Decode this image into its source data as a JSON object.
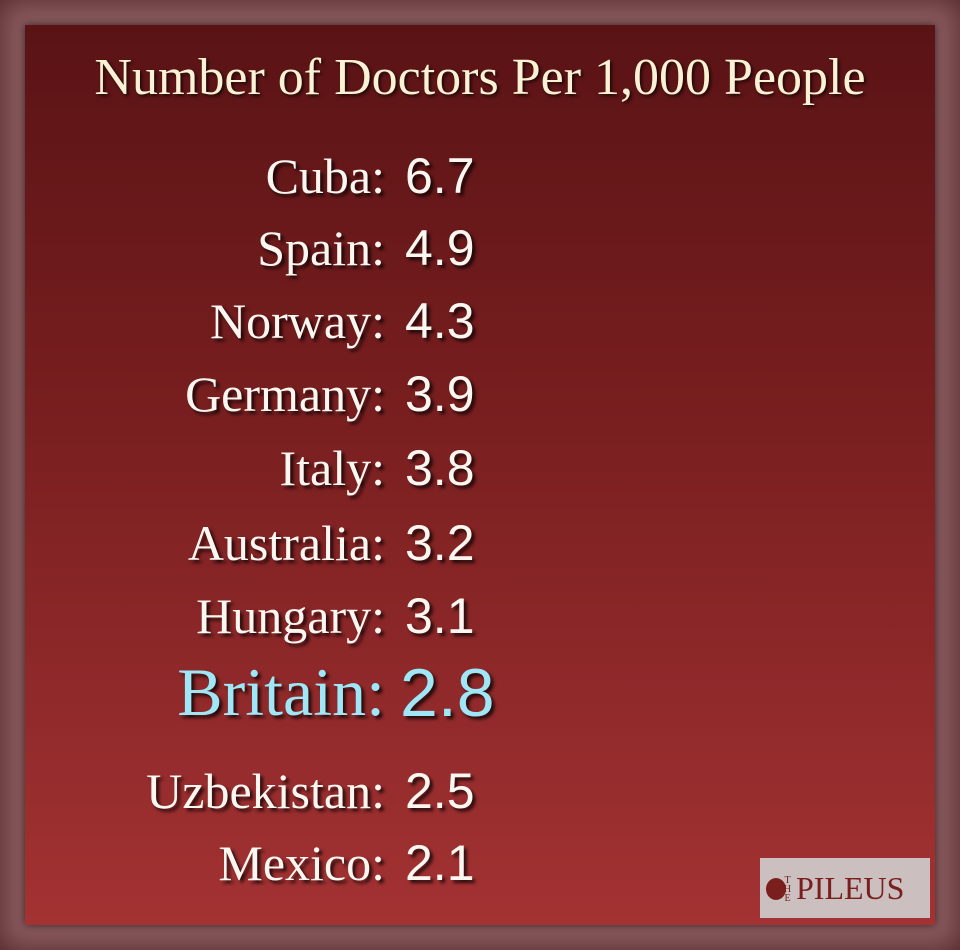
{
  "title": "Number of Doctors Per 1,000 People",
  "rows": [
    {
      "country": "Cuba:",
      "value": 6.7
    },
    {
      "country": "Spain:",
      "value": 4.9
    },
    {
      "country": "Norway:",
      "value": 4.3
    },
    {
      "country": "Germany:",
      "value": 3.9
    },
    {
      "country": "Italy:",
      "value": 3.8
    },
    {
      "country": "Australia:",
      "value": 3.2
    },
    {
      "country": "Hungary:",
      "value": 3.1
    },
    {
      "country": "Britain:",
      "value": 2.8,
      "highlight": true
    },
    {
      "country": "Uzbekistan:",
      "value": 2.5
    },
    {
      "country": "Mexico:",
      "value": 2.1
    }
  ],
  "logo": {
    "small": "THE",
    "name": "PILEUS"
  }
}
